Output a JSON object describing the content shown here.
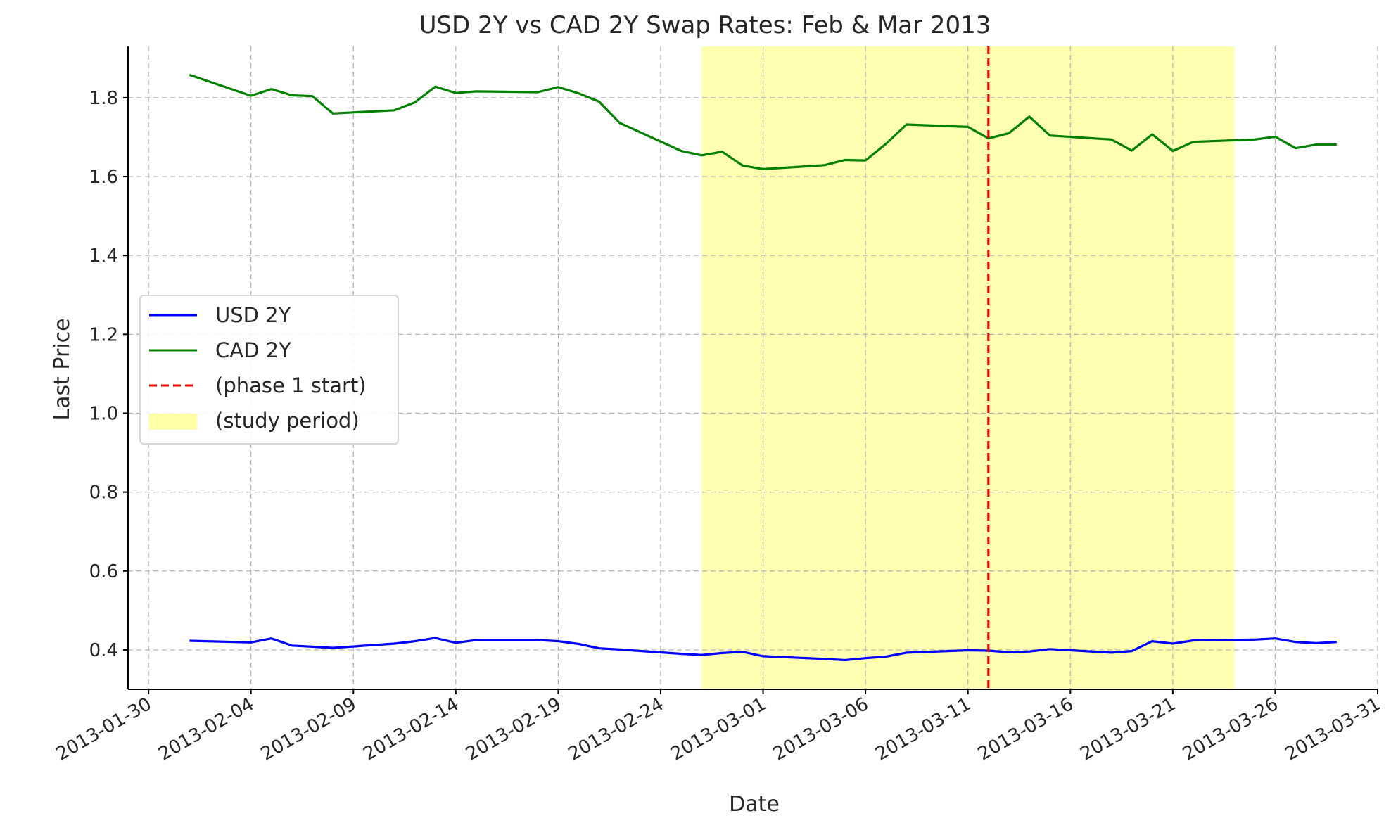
{
  "chart_data": {
    "type": "line",
    "title": "USD 2Y vs CAD 2Y Swap Rates: Feb & Mar 2013",
    "xlabel": "Date",
    "ylabel": "Last Price",
    "xlim": [
      "2013-01-29",
      "2013-03-31"
    ],
    "ylim": [
      0.3,
      1.93
    ],
    "grid": true,
    "legend_position": "center-left",
    "x_ticks": [
      "2013-01-30",
      "2013-02-04",
      "2013-02-09",
      "2013-02-14",
      "2013-02-19",
      "2013-02-24",
      "2013-03-01",
      "2013-03-06",
      "2013-03-11",
      "2013-03-16",
      "2013-03-21",
      "2013-03-26",
      "2013-03-31"
    ],
    "y_ticks": [
      "0.4",
      "0.6",
      "0.8",
      "1.0",
      "1.2",
      "1.4",
      "1.6",
      "1.8"
    ],
    "x": [
      "2013-02-01",
      "2013-02-04",
      "2013-02-05",
      "2013-02-06",
      "2013-02-07",
      "2013-02-08",
      "2013-02-11",
      "2013-02-12",
      "2013-02-13",
      "2013-02-14",
      "2013-02-15",
      "2013-02-18",
      "2013-02-19",
      "2013-02-20",
      "2013-02-21",
      "2013-02-22",
      "2013-02-25",
      "2013-02-26",
      "2013-02-27",
      "2013-02-28",
      "2013-03-01",
      "2013-03-04",
      "2013-03-05",
      "2013-03-06",
      "2013-03-07",
      "2013-03-08",
      "2013-03-11",
      "2013-03-12",
      "2013-03-13",
      "2013-03-14",
      "2013-03-15",
      "2013-03-18",
      "2013-03-19",
      "2013-03-20",
      "2013-03-21",
      "2013-03-22",
      "2013-03-25",
      "2013-03-26",
      "2013-03-27",
      "2013-03-28",
      "2013-03-29"
    ],
    "series": [
      {
        "name": "USD 2Y",
        "color": "#0000ff",
        "values": [
          0.423,
          0.419,
          0.429,
          0.411,
          0.408,
          0.405,
          0.416,
          0.422,
          0.43,
          0.418,
          0.425,
          0.425,
          0.422,
          0.415,
          0.404,
          0.401,
          0.39,
          0.387,
          0.392,
          0.395,
          0.384,
          0.377,
          0.374,
          0.379,
          0.383,
          0.393,
          0.399,
          0.398,
          0.394,
          0.396,
          0.402,
          0.393,
          0.397,
          0.422,
          0.416,
          0.424,
          0.426,
          0.429,
          0.42,
          0.417,
          0.42
        ]
      },
      {
        "name": "CAD 2Y",
        "color": "#008000",
        "values": [
          1.858,
          1.805,
          1.822,
          1.806,
          1.804,
          1.76,
          1.768,
          1.788,
          1.828,
          1.812,
          1.816,
          1.814,
          1.827,
          1.811,
          1.79,
          1.736,
          1.665,
          1.654,
          1.663,
          1.628,
          1.619,
          1.629,
          1.642,
          1.641,
          1.683,
          1.732,
          1.726,
          1.697,
          1.71,
          1.752,
          1.704,
          1.694,
          1.666,
          1.707,
          1.665,
          1.688,
          1.694,
          1.701,
          1.672,
          1.681,
          1.681
        ]
      }
    ],
    "annotations": {
      "vline": {
        "label": "(phase 1 start)",
        "x": "2013-03-12",
        "color": "#ff0000"
      },
      "span": {
        "label": "(study period)",
        "x_start": "2013-02-26",
        "x_end": "2013-03-24",
        "color": "#ffff00"
      }
    }
  }
}
